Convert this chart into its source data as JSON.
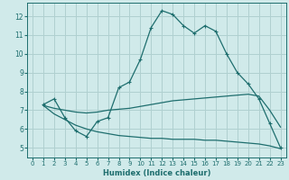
{
  "xlabel": "Humidex (Indice chaleur)",
  "xlim": [
    -0.5,
    23.5
  ],
  "ylim": [
    4.5,
    12.7
  ],
  "xticks": [
    0,
    1,
    2,
    3,
    4,
    5,
    6,
    7,
    8,
    9,
    10,
    11,
    12,
    13,
    14,
    15,
    16,
    17,
    18,
    19,
    20,
    21,
    22,
    23
  ],
  "yticks": [
    5,
    6,
    7,
    8,
    9,
    10,
    11,
    12
  ],
  "bg_color": "#d0eaea",
  "grid_color": "#b0d0d0",
  "line_color": "#1e6e6e",
  "line1": {
    "x": [
      1,
      2,
      3,
      4,
      5,
      6,
      7,
      8,
      9,
      10,
      11,
      12,
      13,
      14,
      15,
      16,
      17,
      18,
      19,
      20,
      21,
      22,
      23
    ],
    "y": [
      7.3,
      7.6,
      6.6,
      5.9,
      5.6,
      6.4,
      6.6,
      8.2,
      8.5,
      9.7,
      11.4,
      12.3,
      12.1,
      11.5,
      11.1,
      11.5,
      11.2,
      10.0,
      9.0,
      8.4,
      7.6,
      6.3,
      5.0
    ]
  },
  "line2": {
    "x": [
      1,
      2,
      3,
      4,
      5,
      6,
      7,
      8,
      9,
      10,
      11,
      12,
      13,
      14,
      15,
      16,
      17,
      18,
      19,
      20,
      21,
      22,
      23
    ],
    "y": [
      7.25,
      7.1,
      7.0,
      6.9,
      6.85,
      6.9,
      7.0,
      7.05,
      7.1,
      7.2,
      7.3,
      7.4,
      7.5,
      7.55,
      7.6,
      7.65,
      7.7,
      7.75,
      7.8,
      7.85,
      7.75,
      7.0,
      6.1
    ]
  },
  "line3": {
    "x": [
      1,
      2,
      3,
      4,
      5,
      6,
      7,
      8,
      9,
      10,
      11,
      12,
      13,
      14,
      15,
      16,
      17,
      18,
      19,
      20,
      21,
      22,
      23
    ],
    "y": [
      7.25,
      6.8,
      6.5,
      6.2,
      6.0,
      5.85,
      5.75,
      5.65,
      5.6,
      5.55,
      5.5,
      5.5,
      5.45,
      5.45,
      5.45,
      5.4,
      5.4,
      5.35,
      5.3,
      5.25,
      5.2,
      5.1,
      4.95
    ]
  }
}
